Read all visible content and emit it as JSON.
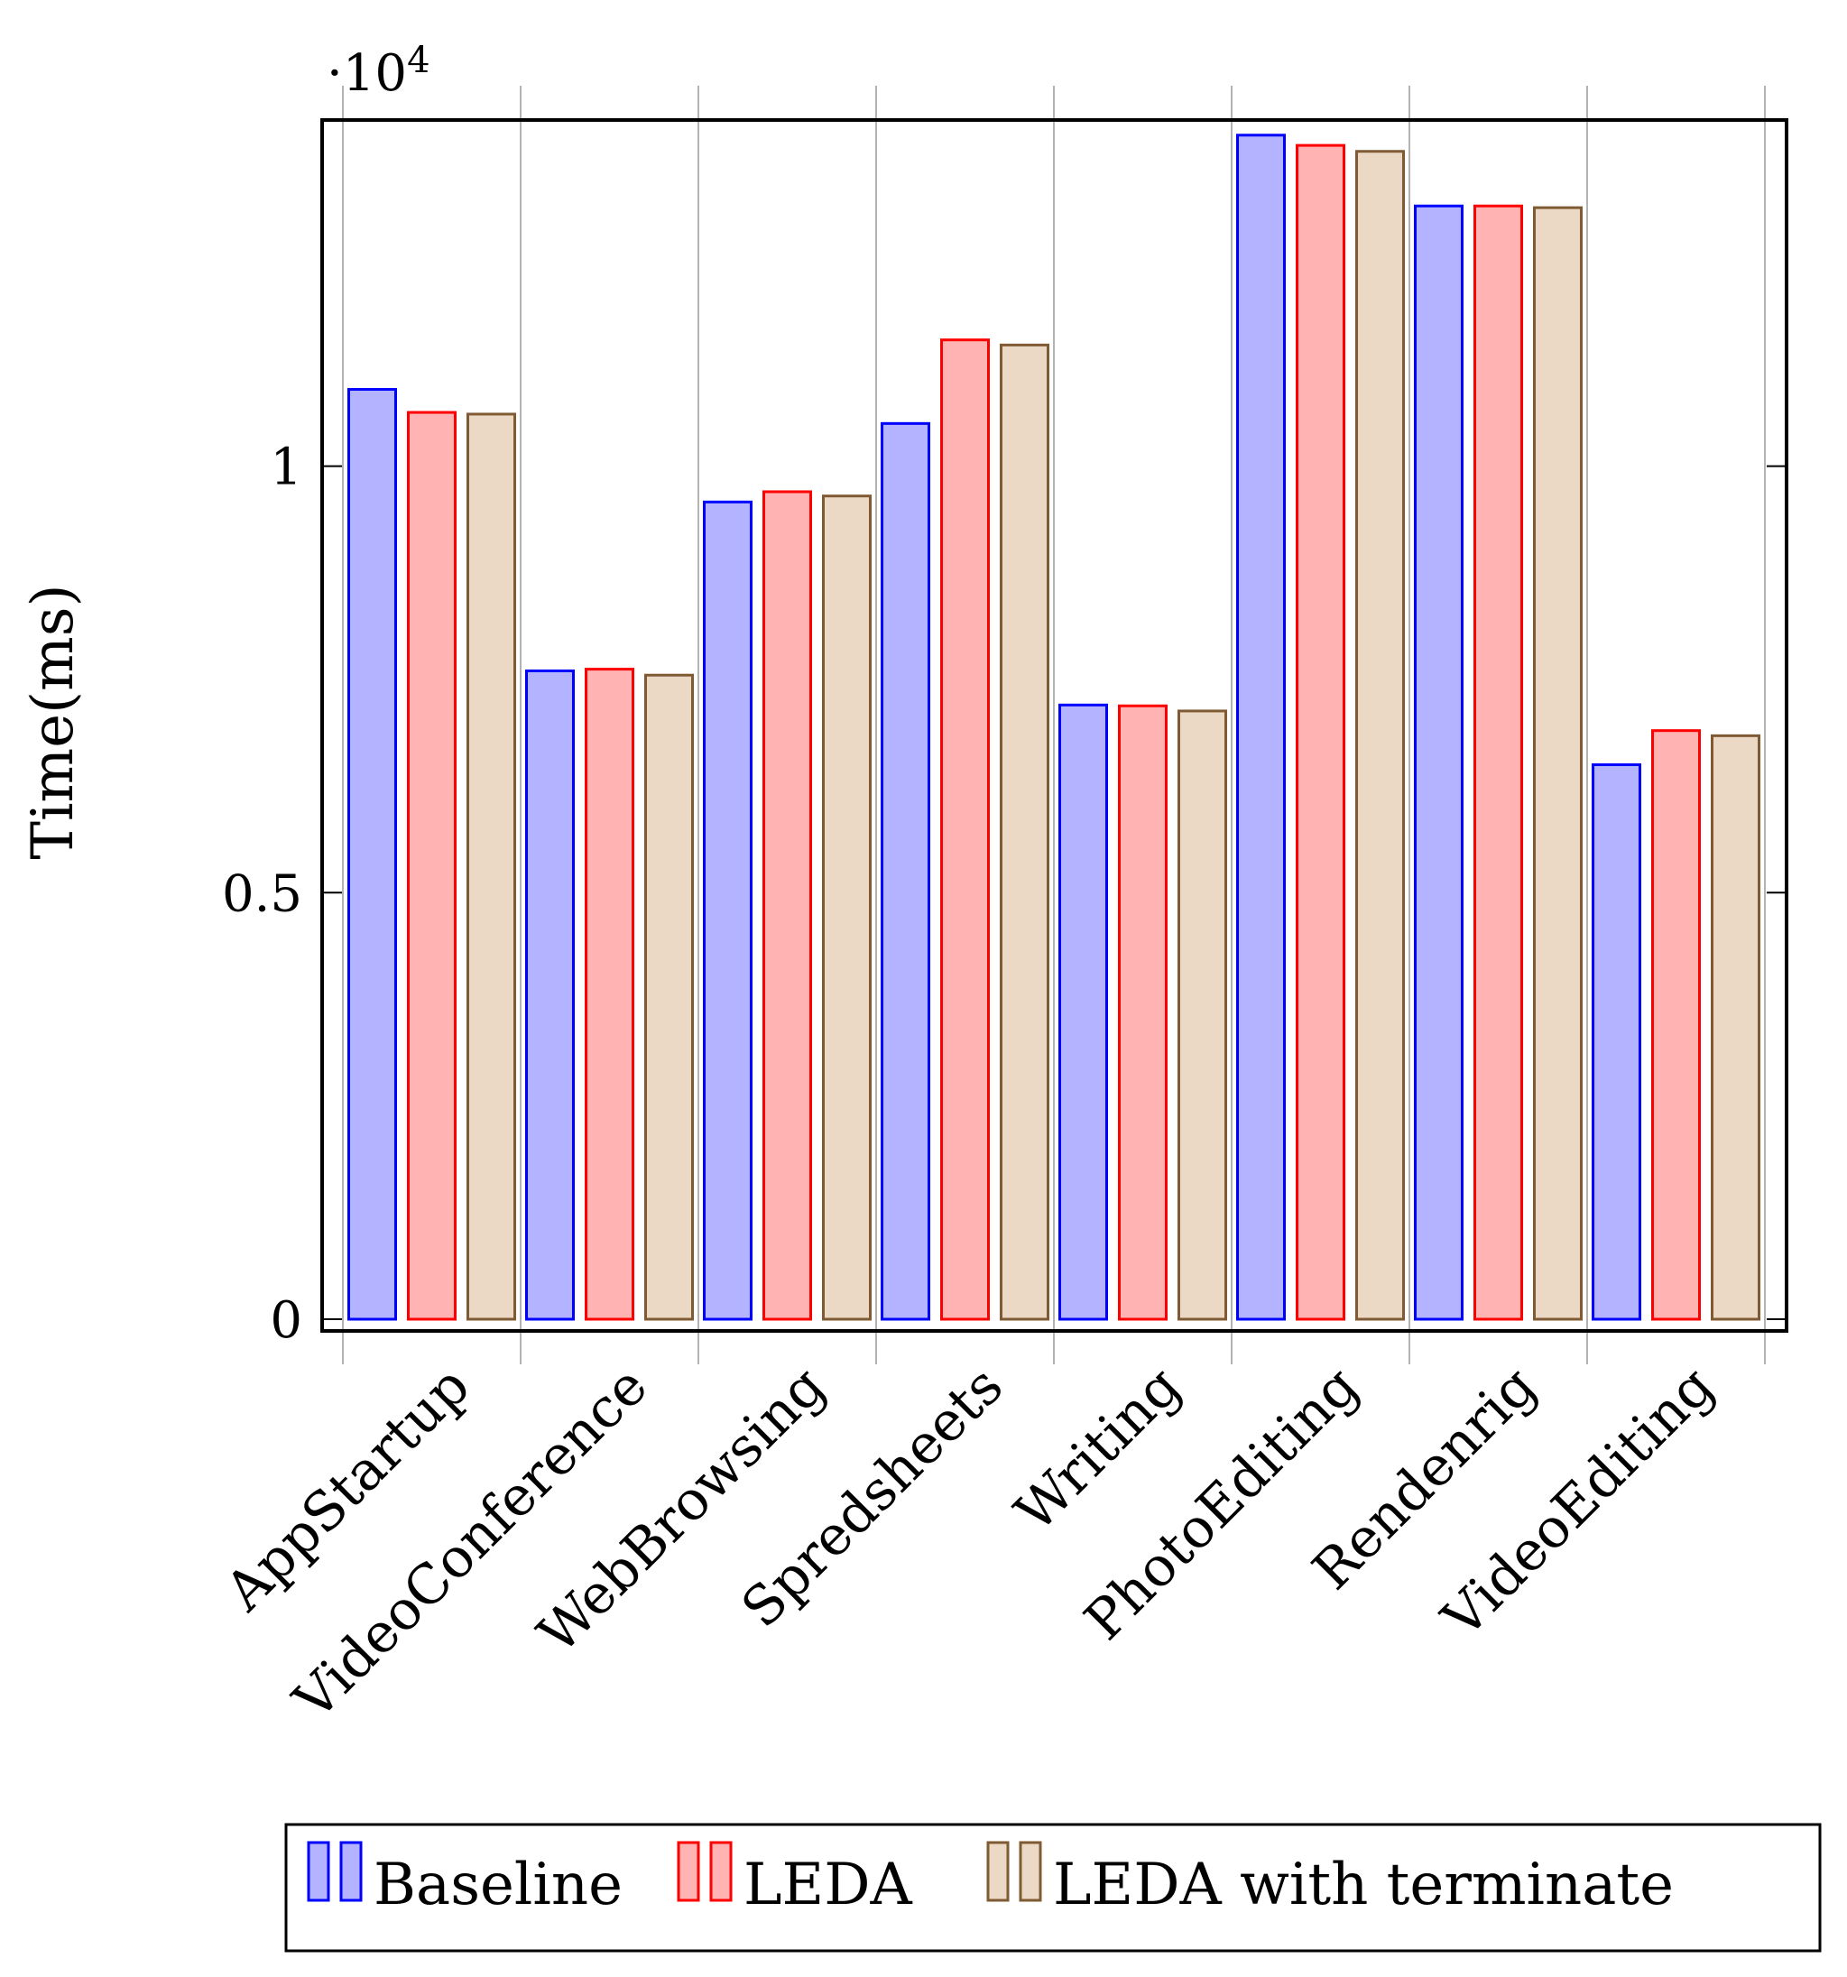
{
  "chart_data": {
    "type": "bar",
    "ylabel": "Time(ms)",
    "y_scale_label": {
      "prefix": "·10",
      "exponent": "4"
    },
    "ylim": [
      0,
      14200
    ],
    "yticks": [
      {
        "value": 0,
        "label": "0"
      },
      {
        "value": 5000,
        "label": "0.5"
      },
      {
        "value": 10000,
        "label": "1"
      }
    ],
    "categories": [
      "AppStartup",
      "VideoConference",
      "WebBrowsing",
      "Spredsheets",
      "Writing",
      "PhotoEditing",
      "Rendenrig",
      "VideoEditing"
    ],
    "series": [
      {
        "name": "Baseline",
        "fill": "#b3b3ff",
        "stroke": "#0000ff",
        "values": [
          10900,
          7600,
          9580,
          10500,
          7200,
          13880,
          13050,
          6500
        ]
      },
      {
        "name": "LEDA",
        "fill": "#ffb3b3",
        "stroke": "#ff0000",
        "values": [
          10630,
          7620,
          9700,
          11480,
          7190,
          13760,
          13050,
          6900
        ]
      },
      {
        "name": "LEDA with terminate",
        "fill": "#ebd9c6",
        "stroke": "#7f5a33",
        "values": [
          10610,
          7550,
          9650,
          11420,
          7130,
          13690,
          13030,
          6840
        ]
      }
    ],
    "grid": "vertical",
    "legend_position": "bottom"
  }
}
